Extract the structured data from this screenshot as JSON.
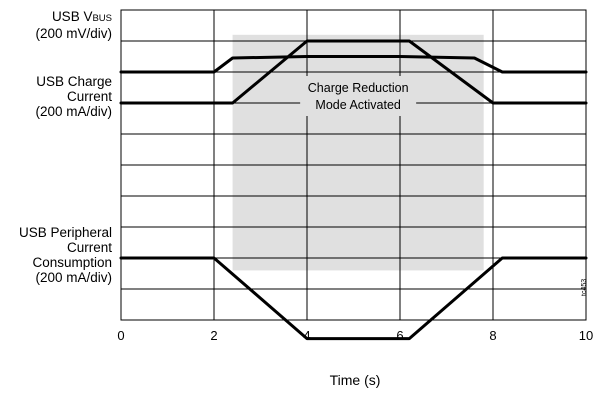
{
  "chart_data": {
    "type": "line",
    "x_range": [
      0,
      10
    ],
    "x_ticks": [
      "0",
      "2",
      "4",
      "6",
      "8",
      "10"
    ],
    "xlabel": "Time (s)",
    "grid": true,
    "shaded_region": {
      "x_start": 2.4,
      "x_end": 7.8,
      "color": "#e0e0e0"
    },
    "annotation": [
      "Charge Reduction",
      "Mode Activated"
    ],
    "series": [
      {
        "name_lines": [
          "USB V",
          "BUS",
          "(200 mV/div)"
        ],
        "x": [
          0,
          2,
          2.4,
          4,
          6,
          7.6,
          8.2,
          10
        ],
        "level_div": [
          0.0,
          0.0,
          -0.45,
          -0.5,
          -0.5,
          -0.45,
          0.0,
          0.0
        ]
      },
      {
        "name_lines": [
          "USB Charge",
          "Current",
          "(200 mA/div)"
        ],
        "x": [
          0,
          2.4,
          4,
          6.2,
          8,
          10
        ],
        "level_div": [
          0.0,
          0.0,
          -2.0,
          -2.0,
          0.0,
          0.0
        ]
      },
      {
        "name_lines": [
          "USB Peripheral",
          "Current",
          "Consumption",
          "(200 mA/div)"
        ],
        "x": [
          0,
          2,
          4,
          6.2,
          8.2,
          10
        ],
        "level_div": [
          0.0,
          0.0,
          2.6,
          2.6,
          0.0,
          0.0
        ]
      }
    ],
    "figure_code": "tc453"
  }
}
